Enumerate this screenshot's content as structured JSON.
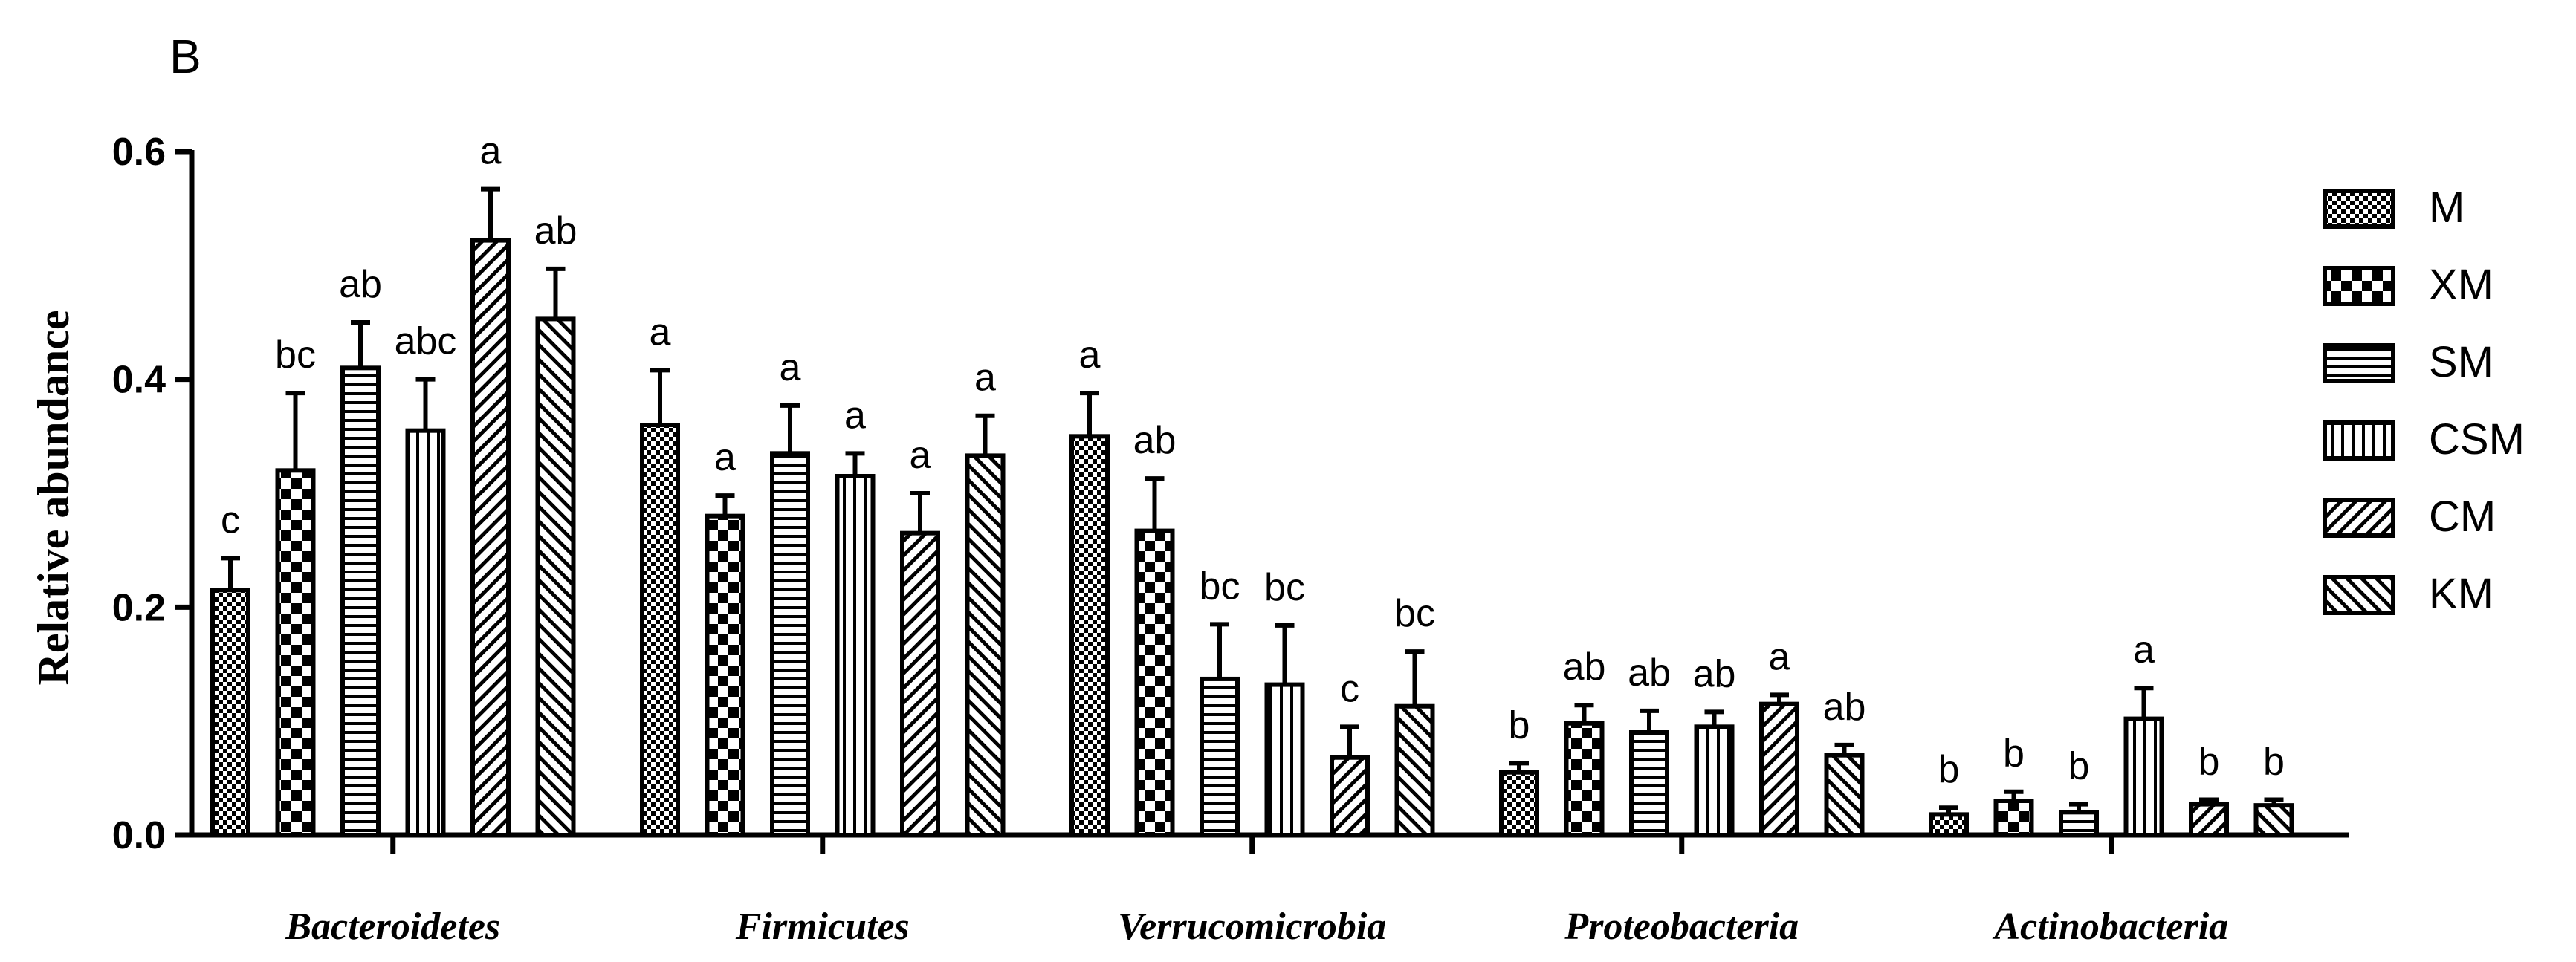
{
  "panel_label": "B",
  "chart_data": {
    "type": "bar",
    "title": "",
    "xlabel": "",
    "ylabel": "Relative abundance",
    "ylim": [
      0,
      0.6
    ],
    "yticks": [
      "0.0",
      "0.2",
      "0.4",
      "0.6"
    ],
    "categories": [
      "Bacteroidetes",
      "Firmicutes",
      "Verrucomicrobia",
      "Proteobacteria",
      "Actinobacteria"
    ],
    "legend_position": "right",
    "series": [
      {
        "name": "M",
        "pattern": "checker-fine",
        "values": [
          0.215,
          0.36,
          0.35,
          0.055,
          0.018
        ],
        "errors": [
          0.028,
          0.048,
          0.038,
          0.008,
          0.006
        ],
        "labels": [
          "c",
          "a",
          "a",
          "b",
          "b"
        ]
      },
      {
        "name": "XM",
        "pattern": "checker-large",
        "values": [
          0.32,
          0.28,
          0.267,
          0.098,
          0.03
        ],
        "errors": [
          0.068,
          0.018,
          0.046,
          0.016,
          0.008
        ],
        "labels": [
          "bc",
          "a",
          "ab",
          "ab",
          "b"
        ]
      },
      {
        "name": "SM",
        "pattern": "horizontal",
        "values": [
          0.41,
          0.335,
          0.137,
          0.09,
          0.02
        ],
        "errors": [
          0.04,
          0.042,
          0.048,
          0.019,
          0.007
        ],
        "labels": [
          "ab",
          "a",
          "bc",
          "ab",
          "b"
        ]
      },
      {
        "name": "CSM",
        "pattern": "vertical",
        "values": [
          0.355,
          0.315,
          0.132,
          0.095,
          0.102
        ],
        "errors": [
          0.045,
          0.02,
          0.052,
          0.013,
          0.027
        ],
        "labels": [
          "abc",
          "a",
          "bc",
          "ab",
          "a"
        ]
      },
      {
        "name": "CM",
        "pattern": "diag-right",
        "values": [
          0.522,
          0.265,
          0.068,
          0.115,
          0.027
        ],
        "errors": [
          0.045,
          0.035,
          0.027,
          0.008,
          0.004
        ],
        "labels": [
          "a",
          "a",
          "c",
          "a",
          "b"
        ]
      },
      {
        "name": "KM",
        "pattern": "diag-left",
        "values": [
          0.453,
          0.333,
          0.113,
          0.07,
          0.026
        ],
        "errors": [
          0.044,
          0.035,
          0.048,
          0.009,
          0.005
        ],
        "labels": [
          "ab",
          "a",
          "bc",
          "ab",
          "b"
        ]
      }
    ]
  }
}
